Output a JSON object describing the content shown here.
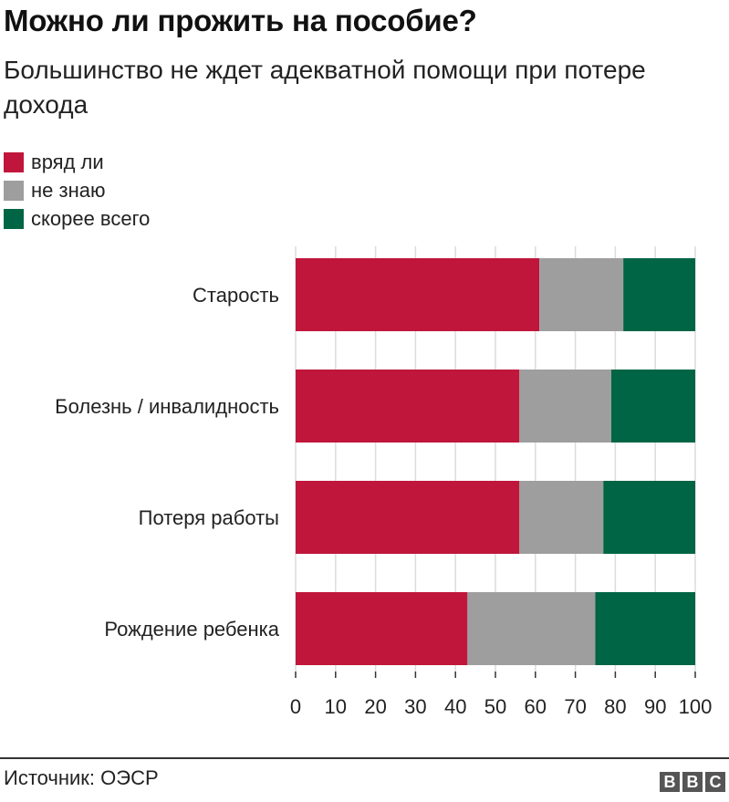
{
  "header": {
    "title": "Можно ли прожить на пособие?",
    "subtitle": "Большинство не ждет адекватной помощи при потере дохода"
  },
  "footer": {
    "source": "Источник: ОЭСР",
    "logo_letters": [
      "B",
      "B",
      "C"
    ]
  },
  "chart_data": {
    "type": "bar",
    "orientation": "horizontal",
    "stacked": true,
    "categories": [
      "Старость",
      "Болезнь / инвалидность",
      "Потеря работы",
      "Рождение ребенка"
    ],
    "series": [
      {
        "name": "вряд ли",
        "color": "#c0163b",
        "values": [
          61,
          56,
          56,
          43
        ]
      },
      {
        "name": "не знаю",
        "color": "#9e9e9e",
        "values": [
          21,
          23,
          21,
          32
        ]
      },
      {
        "name": "скорее всего",
        "color": "#006544",
        "values": [
          18,
          21,
          23,
          25
        ]
      }
    ],
    "xlim": [
      0,
      100
    ],
    "xticks": [
      "0",
      "10",
      "20",
      "30",
      "40",
      "50",
      "60",
      "70",
      "80",
      "90",
      "100"
    ],
    "grid": true,
    "legend_position": "top-left"
  }
}
